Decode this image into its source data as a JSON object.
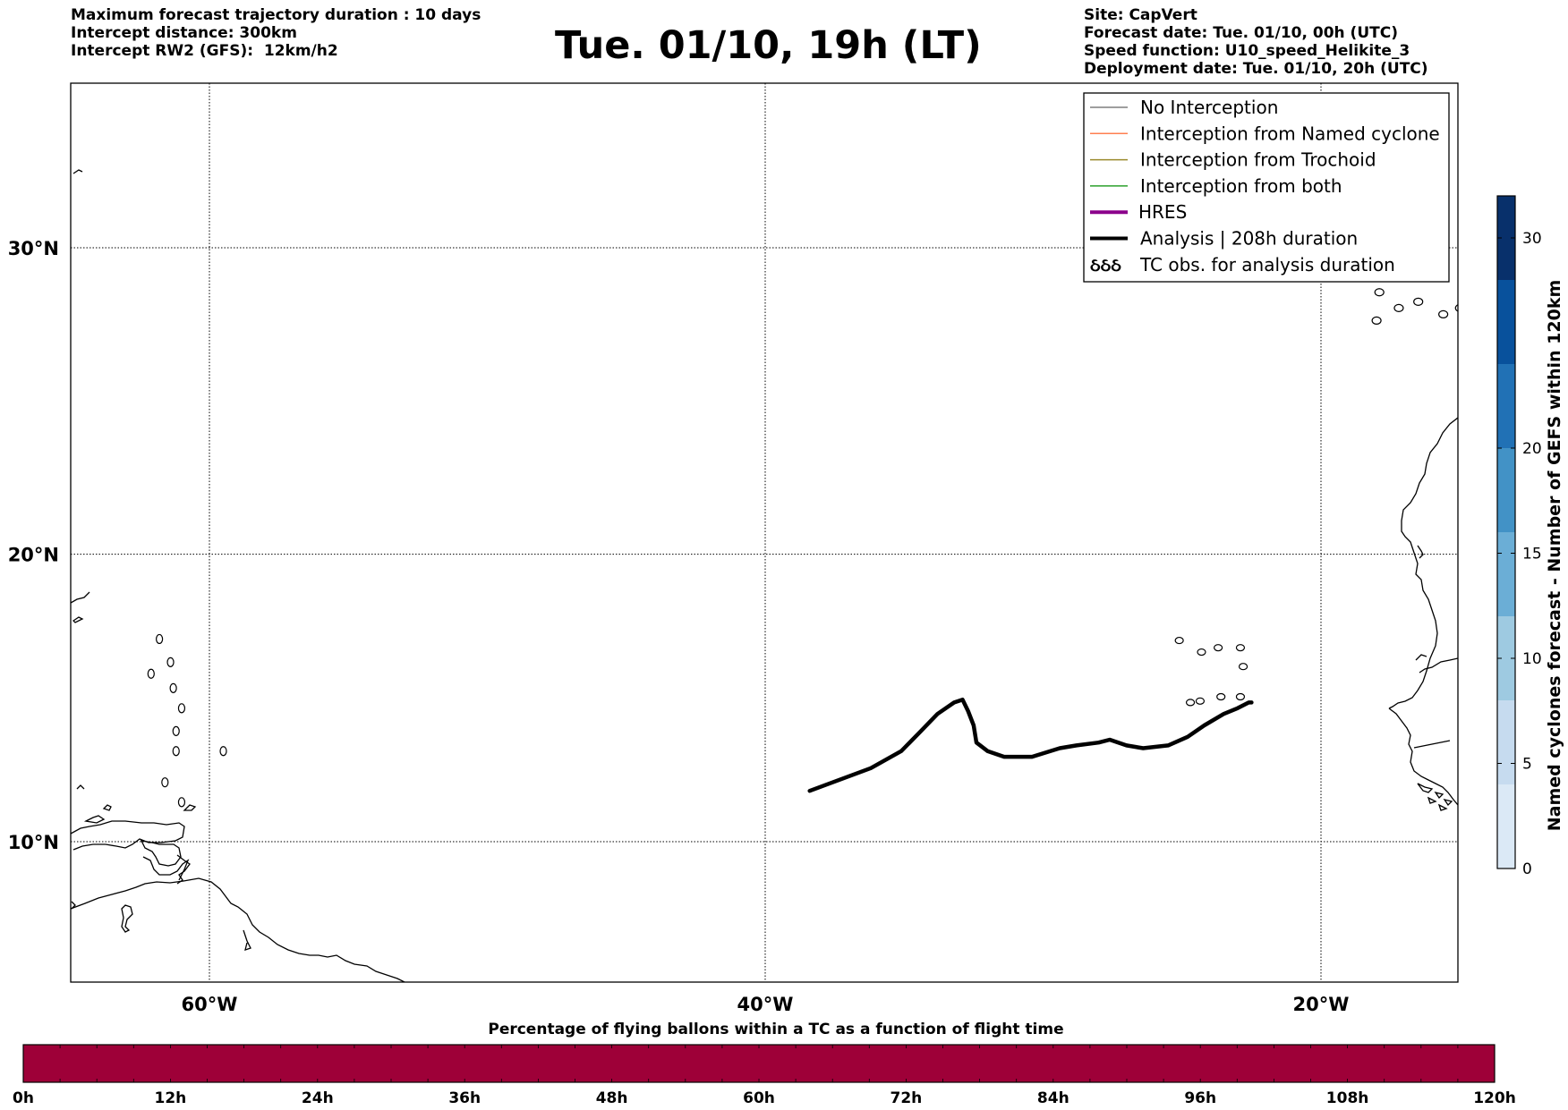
{
  "header": {
    "left": [
      "Maximum forecast trajectory duration : 10 days",
      "Intercept distance: 300km",
      "Intercept RW2 (GFS):  12km/h2"
    ],
    "title": "Tue. 01/10, 19h (LT)",
    "right": [
      "Site: CapVert",
      "Forecast date: Tue. 01/10, 00h (UTC)",
      "Speed function: U10_speed_Helikite_3",
      "Deployment date: Tue. 01/10, 20h (UTC)"
    ]
  },
  "map": {
    "lon_range": [
      -65,
      -15
    ],
    "lat_range": [
      5.5,
      34.8
    ],
    "grid": true,
    "lat_ticks": [
      {
        "value": 30,
        "label": "30°N"
      },
      {
        "value": 20,
        "label": "20°N"
      },
      {
        "value": 10,
        "label": "10°N"
      }
    ],
    "lon_ticks": [
      {
        "value": -60,
        "label": "60°W"
      },
      {
        "value": -40,
        "label": "40°W"
      },
      {
        "value": -20,
        "label": "20°W"
      }
    ],
    "analysis_track": {
      "name": "Analysis | 208h duration",
      "color": "#000000",
      "points": [
        [
          -38.4,
          11.8
        ],
        [
          -36.2,
          12.6
        ],
        [
          -35.1,
          13.2
        ],
        [
          -34.4,
          13.9
        ],
        [
          -33.8,
          14.5
        ],
        [
          -33.2,
          14.9
        ],
        [
          -32.9,
          15.0
        ],
        [
          -32.7,
          14.6
        ],
        [
          -32.5,
          14.1
        ],
        [
          -32.4,
          13.5
        ],
        [
          -32.0,
          13.2
        ],
        [
          -31.4,
          13.0
        ],
        [
          -30.4,
          13.0
        ],
        [
          -29.4,
          13.3
        ],
        [
          -28.8,
          13.4
        ],
        [
          -28.0,
          13.5
        ],
        [
          -27.6,
          13.6
        ],
        [
          -27.0,
          13.4
        ],
        [
          -26.4,
          13.3
        ],
        [
          -25.5,
          13.4
        ],
        [
          -24.8,
          13.7
        ],
        [
          -24.2,
          14.1
        ],
        [
          -23.5,
          14.5
        ],
        [
          -23.0,
          14.7
        ],
        [
          -22.6,
          14.9
        ],
        [
          -22.5,
          14.9
        ]
      ]
    },
    "cape_verde_islands": [
      [
        -25.1,
        17.05
      ],
      [
        -24.3,
        16.65
      ],
      [
        -23.7,
        16.8
      ],
      [
        -22.9,
        16.8
      ],
      [
        -22.8,
        16.15
      ],
      [
        -24.7,
        14.9
      ],
      [
        -24.35,
        14.95
      ],
      [
        -23.6,
        15.1
      ],
      [
        -22.9,
        15.1
      ]
    ],
    "canary_islands": [
      [
        -17.9,
        28.6
      ],
      [
        -17.2,
        28.1
      ],
      [
        -16.5,
        28.3
      ],
      [
        -15.6,
        27.9
      ],
      [
        -14.1,
        28.4
      ],
      [
        -13.6,
        28.9
      ],
      [
        -18.0,
        27.7
      ],
      [
        -15.0,
        28.1
      ]
    ],
    "lesser_antilles": [
      [
        -61.8,
        17.1
      ],
      [
        -61.4,
        16.3
      ],
      [
        -61.3,
        15.4
      ],
      [
        -61.0,
        14.7
      ],
      [
        -61.2,
        13.9
      ],
      [
        -61.2,
        13.2
      ],
      [
        -61.6,
        12.1
      ],
      [
        -61.0,
        11.4
      ],
      [
        -59.5,
        13.2
      ],
      [
        -62.1,
        15.9
      ]
    ]
  },
  "legend": {
    "items": [
      {
        "label": "No Interception",
        "color": "#7f7f7f",
        "style": "thin"
      },
      {
        "label": "Interception from Named cyclone",
        "color": "#ff7f50",
        "style": "thin"
      },
      {
        "label": "Interception from Trochoid",
        "color": "#9a8a2c",
        "style": "thin"
      },
      {
        "label": "Interception from both",
        "color": "#2ca02c",
        "style": "thin"
      },
      {
        "label": "HRES",
        "color": "#8b008b",
        "style": "thick"
      },
      {
        "label": "Analysis | 208h duration",
        "color": "#000000",
        "style": "thick"
      },
      {
        "label": "TC obs. for analysis duration",
        "color": "#000000",
        "style": "symbol",
        "symbol": "ઠઠઠ"
      }
    ]
  },
  "colorbar_right": {
    "title": "Named cyclones forecast - Number of GEFS within 120km",
    "min": 0,
    "max": 32,
    "ticks": [
      0,
      5,
      10,
      15,
      20,
      30
    ],
    "colors": [
      "#dbe9f6",
      "#c6dbef",
      "#9ecae1",
      "#6baed6",
      "#4292c6",
      "#2171b5",
      "#08519c",
      "#08306b"
    ]
  },
  "colorbar_bottom": {
    "title": "Percentage of flying ballons within a TC as a function of flight time",
    "ticks": [
      "0h",
      "12h",
      "24h",
      "36h",
      "48h",
      "60h",
      "72h",
      "84h",
      "96h",
      "108h",
      "120h"
    ],
    "color": "#9e0038"
  }
}
